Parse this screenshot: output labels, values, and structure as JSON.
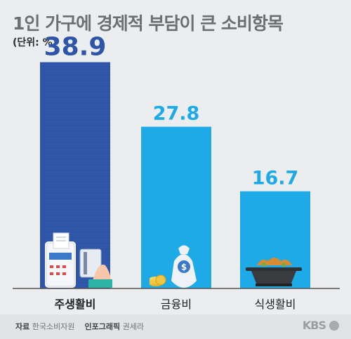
{
  "chart_data": {
    "type": "bar",
    "title": "1인 가구에 경제적 부담이 큰 소비항목",
    "unit_label": "(단위: %)",
    "categories": [
      "주생활비",
      "금융비",
      "식생활비"
    ],
    "values": [
      38.9,
      27.8,
      16.7
    ],
    "value_labels": [
      "38.9",
      "27.8",
      "16.7"
    ],
    "ylim": [
      0,
      45
    ],
    "grid": false,
    "colors": [
      "#2e55a8",
      "#1daae7",
      "#1daae7"
    ],
    "value_label_colors": [
      "#2e55a8",
      "#1daae7",
      "#1daae7"
    ],
    "category_label_bold": [
      true,
      false,
      false
    ]
  },
  "icons": [
    "receipt-terminal-icon",
    "money-bag-icon",
    "hot-pot-icon"
  ],
  "footer": {
    "source_label": "자료",
    "source_value": "한국소비자원",
    "graphic_label": "인포그래픽",
    "graphic_value": "권세라",
    "logo": "KBS"
  }
}
